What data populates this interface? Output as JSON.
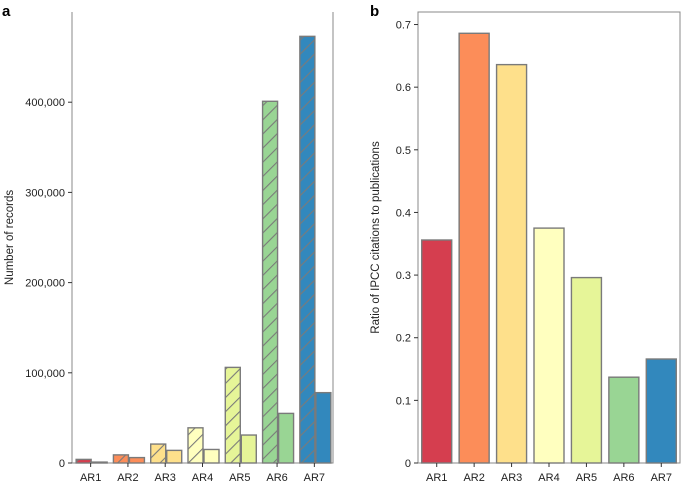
{
  "panels": {
    "a": {
      "letter": "a"
    },
    "b": {
      "letter": "b"
    }
  },
  "colors": {
    "AR1": "#d53e4f",
    "AR2": "#fc8d59",
    "AR3": "#fee08b",
    "AR4": "#ffffbf",
    "AR5": "#e6f598",
    "AR6": "#99d594",
    "AR7": "#3288bd",
    "bar_outline": "#7a7a7a",
    "hatch": "#7a7a7a"
  },
  "chart_data": [
    {
      "panel": "a",
      "type": "bar",
      "categories": [
        "AR1",
        "AR2",
        "AR3",
        "AR4",
        "AR5",
        "AR6",
        "AR7"
      ],
      "series": [
        {
          "pattern": "hatched",
          "values": [
            4000,
            9000,
            21000,
            39000,
            106000,
            401000,
            473000
          ]
        },
        {
          "pattern": "solid",
          "values": [
            1000,
            6000,
            14000,
            15000,
            31000,
            55000,
            78000
          ]
        }
      ],
      "ylabel": "Number of records",
      "xlabel": "",
      "ylim": [
        0,
        500000
      ],
      "yticks": [
        0,
        100000,
        200000,
        300000,
        400000
      ],
      "ytick_labels": [
        "0",
        "100,000",
        "200,000",
        "300,000",
        "400,000"
      ],
      "grid": false,
      "legend": "none"
    },
    {
      "panel": "b",
      "type": "bar",
      "categories": [
        "AR1",
        "AR2",
        "AR3",
        "AR4",
        "AR5",
        "AR6",
        "AR7"
      ],
      "values": [
        0.356,
        0.686,
        0.636,
        0.375,
        0.296,
        0.137,
        0.166
      ],
      "ylabel": "Ratio of IPCC citations to publications",
      "xlabel": "",
      "ylim": [
        0,
        0.72
      ],
      "yticks": [
        0,
        0.1,
        0.2,
        0.3,
        0.4,
        0.5,
        0.6,
        0.7
      ],
      "ytick_labels": [
        "0",
        "0.1",
        "0.2",
        "0.3",
        "0.4",
        "0.5",
        "0.6",
        "0.7"
      ],
      "grid": false,
      "legend": "none"
    }
  ]
}
